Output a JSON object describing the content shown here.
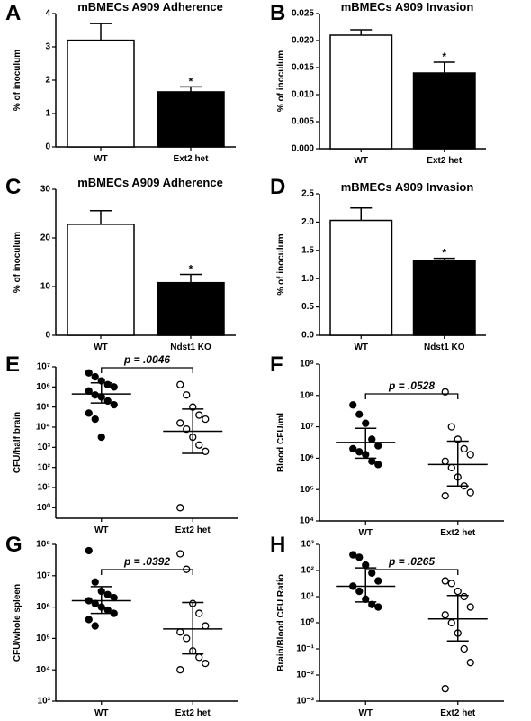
{
  "chart_data": [
    {
      "type": "bar",
      "panel": "A",
      "title": "mBMECs A909 Adherence",
      "y_label": "% of inoculum",
      "categories": [
        "WT",
        "Ext2 het"
      ],
      "values": [
        3.2,
        1.65
      ],
      "errors": [
        0.5,
        0.15
      ],
      "colors": [
        "#ffffff",
        "#000000"
      ],
      "annotations": [
        {
          "index": 1,
          "text": "*"
        }
      ],
      "ylim": [
        0,
        4
      ],
      "yticks": [
        0,
        1,
        2,
        3,
        4
      ]
    },
    {
      "type": "bar",
      "panel": "B",
      "title": "mBMECs A909 Invasion",
      "y_label": "% of inoculum",
      "categories": [
        "WT",
        "Ext2 het"
      ],
      "values": [
        0.021,
        0.014
      ],
      "errors": [
        0.001,
        0.002
      ],
      "colors": [
        "#ffffff",
        "#000000"
      ],
      "annotations": [
        {
          "index": 1,
          "text": "*"
        }
      ],
      "ylim": [
        0,
        0.025
      ],
      "yticks": [
        {
          "value": 0,
          "label": "0.000"
        },
        {
          "value": 0.005,
          "label": "0.005"
        },
        {
          "value": 0.01,
          "label": "0.010"
        },
        {
          "value": 0.015,
          "label": "0.015"
        },
        {
          "value": 0.02,
          "label": "0.020"
        },
        {
          "value": 0.025,
          "label": "0.025"
        }
      ]
    },
    {
      "type": "bar",
      "panel": "C",
      "title": "mBMECs A909 Adherence",
      "y_label": "% of inoculum",
      "categories": [
        "WT",
        "Ndst1 KO"
      ],
      "values": [
        22.8,
        10.8
      ],
      "errors": [
        2.8,
        1.7
      ],
      "colors": [
        "#ffffff",
        "#000000"
      ],
      "annotations": [
        {
          "index": 1,
          "text": "*"
        }
      ],
      "ylim": [
        0,
        30
      ],
      "yticks": [
        0,
        10,
        20,
        30
      ]
    },
    {
      "type": "bar",
      "panel": "D",
      "title": "mBMECs A909 Invasion",
      "y_label": "% of inoculum",
      "categories": [
        "WT",
        "Ndst1 KO"
      ],
      "values": [
        2.03,
        1.31
      ],
      "errors": [
        0.22,
        0.05
      ],
      "colors": [
        "#ffffff",
        "#000000"
      ],
      "annotations": [
        {
          "index": 1,
          "text": "*"
        }
      ],
      "ylim": [
        0,
        2.5
      ],
      "yticks": [
        {
          "value": 0,
          "label": "0.0"
        },
        {
          "value": 0.5,
          "label": "0.5"
        },
        {
          "value": 1,
          "label": "1.0"
        },
        {
          "value": 1.5,
          "label": "1.5"
        },
        {
          "value": 2,
          "label": "2.0"
        },
        {
          "value": 2.5,
          "label": "2.5"
        }
      ]
    },
    {
      "type": "dot",
      "panel": "E",
      "y_label": "CFU/half brain",
      "p_text": "p = .0046",
      "log_scale": true,
      "categories": [
        "WT",
        "Ext2 het"
      ],
      "marker_fills": [
        "#000000",
        "#ffffff"
      ],
      "groups": [
        {
          "values": [
            5000000,
            3200000,
            2000000,
            1300000,
            1000000,
            630000,
            400000,
            320000,
            200000,
            130000,
            50000,
            25000,
            3200
          ],
          "mean": 450000,
          "ci": [
            160000,
            1600000
          ]
        },
        {
          "values": [
            1300000,
            400000,
            100000,
            40000,
            25000,
            16000,
            8000,
            3200,
            1300,
            630,
            1
          ],
          "mean": 6300,
          "ci": [
            500,
            80000
          ]
        }
      ],
      "ylim": [
        0.3,
        10000000
      ],
      "yticks": [
        {
          "value": 1,
          "label": "10⁰"
        },
        {
          "value": 10,
          "label": "10¹"
        },
        {
          "value": 100,
          "label": "10²"
        },
        {
          "value": 1000,
          "label": "10³"
        },
        {
          "value": 10000,
          "label": "10⁴"
        },
        {
          "value": 100000,
          "label": "10⁵"
        },
        {
          "value": 1000000,
          "label": "10⁶"
        },
        {
          "value": 10000000,
          "label": "10⁷"
        }
      ]
    },
    {
      "type": "dot",
      "panel": "F",
      "y_label": "Blood CFU/ml",
      "p_text": "p = .0528",
      "log_scale": true,
      "categories": [
        "WT",
        "Ext2 het"
      ],
      "marker_fills": [
        "#000000",
        "#ffffff"
      ],
      "groups": [
        {
          "values": [
            50000000,
            25000000,
            13000000,
            4000000,
            2500000,
            2000000,
            1600000,
            1300000,
            800000,
            630000
          ],
          "mean": 3200000,
          "ci": [
            1000000,
            9000000
          ]
        },
        {
          "values": [
            130000000,
            10000000,
            4000000,
            2000000,
            1300000,
            800000,
            500000,
            250000,
            130000,
            80000,
            63000
          ],
          "mean": 630000,
          "ci": [
            130000,
            3500000
          ]
        }
      ],
      "ylim": [
        10000,
        1000000000
      ],
      "yticks": [
        {
          "value": 10000,
          "label": "10⁴"
        },
        {
          "value": 100000,
          "label": "10⁵"
        },
        {
          "value": 1000000,
          "label": "10⁶"
        },
        {
          "value": 10000000,
          "label": "10⁷"
        },
        {
          "value": 100000000,
          "label": "10⁸"
        },
        {
          "value": 1000000000,
          "label": "10⁹"
        }
      ]
    },
    {
      "type": "dot",
      "panel": "G",
      "y_label": "CFU/whole spleen",
      "p_text": "p = .0392",
      "log_scale": true,
      "categories": [
        "WT",
        "Ext2 het"
      ],
      "marker_fills": [
        "#000000",
        "#ffffff"
      ],
      "groups": [
        {
          "values": [
            63000000,
            6300000,
            3200000,
            2500000,
            2000000,
            1600000,
            1300000,
            1000000,
            800000,
            630000,
            400000,
            250000
          ],
          "mean": 1600000,
          "ci": [
            630000,
            4500000
          ]
        },
        {
          "values": [
            50000000,
            16000000,
            1300000,
            630000,
            250000,
            160000,
            100000,
            40000,
            25000,
            16000,
            10000
          ],
          "mean": 200000,
          "ci": [
            32000,
            1400000
          ]
        }
      ],
      "ylim": [
        1000,
        100000000
      ],
      "yticks": [
        {
          "value": 1000,
          "label": "10³"
        },
        {
          "value": 10000,
          "label": "10⁴"
        },
        {
          "value": 100000,
          "label": "10⁵"
        },
        {
          "value": 1000000,
          "label": "10⁶"
        },
        {
          "value": 10000000,
          "label": "10⁷"
        },
        {
          "value": 100000000,
          "label": "10⁸"
        }
      ]
    },
    {
      "type": "dot",
      "panel": "H",
      "y_label": "Brain/Blood CFU Ratio",
      "p_text": "p = .0265",
      "log_scale": true,
      "categories": [
        "WT",
        "Ext2 het"
      ],
      "marker_fills": [
        "#000000",
        "#ffffff"
      ],
      "groups": [
        {
          "values": [
            400,
            320,
            160,
            80,
            40,
            25,
            16,
            8,
            5,
            4
          ],
          "mean": 25,
          "ci": [
            6.3,
            126
          ]
        },
        {
          "values": [
            40,
            32,
            16,
            10,
            4,
            2,
            1,
            0.4,
            0.1,
            0.03,
            0.003
          ],
          "mean": 1.4,
          "ci": [
            0.2,
            11
          ]
        }
      ],
      "ylim": [
        0.001,
        1000
      ],
      "yticks": [
        {
          "value": 0.001,
          "label": "10⁻³"
        },
        {
          "value": 0.01,
          "label": "10⁻²"
        },
        {
          "value": 0.1,
          "label": "10⁻¹"
        },
        {
          "value": 1,
          "label": "10⁰"
        },
        {
          "value": 10,
          "label": "10¹"
        },
        {
          "value": 100,
          "label": "10²"
        },
        {
          "value": 1000,
          "label": "10³"
        }
      ]
    }
  ]
}
